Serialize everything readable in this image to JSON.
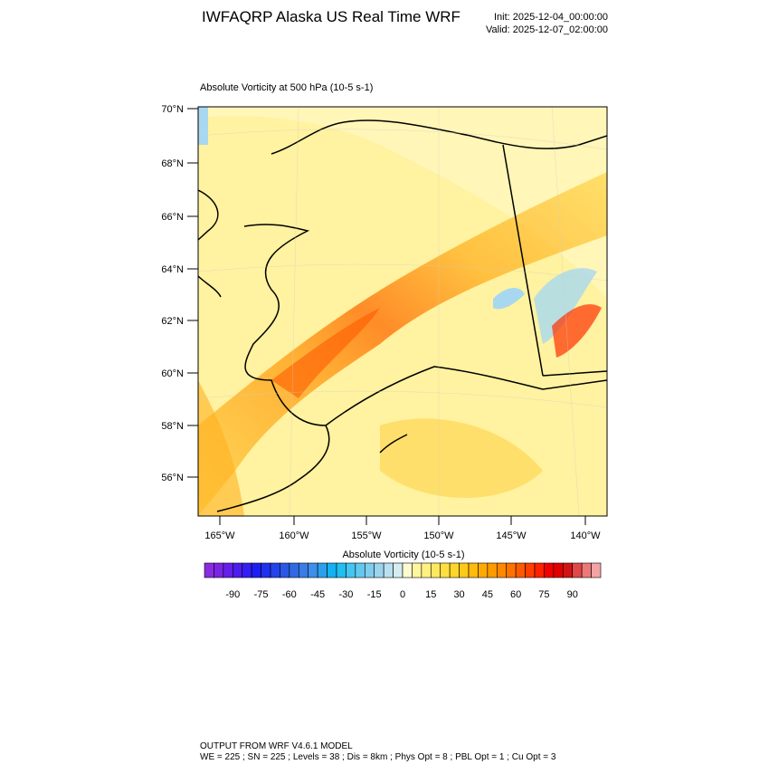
{
  "header": {
    "title": "IWFAQRP Alaska US Real Time WRF",
    "init": "Init: 2025-12-04_00:00:00",
    "valid": "Valid: 2025-12-07_02:00:00"
  },
  "map": {
    "subtitle": "Absolute Vorticity at 500 hPa   (10-5 s-1)",
    "lat_labels": [
      "70°N",
      "68°N",
      "66°N",
      "64°N",
      "62°N",
      "60°N",
      "58°N",
      "56°N"
    ],
    "lon_labels": [
      "165°W",
      "160°W",
      "155°W",
      "150°W",
      "145°W",
      "140°W"
    ]
  },
  "colorbar": {
    "title": "Absolute Vorticity  (10-5 s-1)",
    "labels": [
      -90,
      -75,
      -60,
      -45,
      -30,
      -15,
      0,
      15,
      30,
      45,
      60,
      75,
      90
    ],
    "colors": [
      "#8a2be2",
      "#7a24e6",
      "#6420ea",
      "#4c1eee",
      "#341ef2",
      "#1e1ef4",
      "#1e30f0",
      "#2444ea",
      "#2a58e4",
      "#306ae2",
      "#3a7ce6",
      "#3e8eea",
      "#2aa0ec",
      "#12b2f2",
      "#20bef2",
      "#44c6f0",
      "#62c8ee",
      "#80ccee",
      "#9cd4ee",
      "#b8e0f0",
      "#d4ecf2",
      "#fffbd0",
      "#fff6a0",
      "#fff080",
      "#ffe860",
      "#ffdf40",
      "#ffd52a",
      "#ffc81a",
      "#ffba0c",
      "#ffaa00",
      "#ff9a00",
      "#ff8800",
      "#ff7200",
      "#ff5a00",
      "#ff3e00",
      "#ff2000",
      "#f20000",
      "#e00000",
      "#d01414",
      "#e04848",
      "#ee7878",
      "#f4a4a4"
    ]
  },
  "footer": {
    "line1": "OUTPUT FROM WRF V4.6.1 MODEL",
    "line2": "WE = 225 ; SN = 225 ; Levels = 38 ; Dis = 8km ; Phys Opt = 8 ; PBL Opt = 1 ; Cu Opt = 3"
  }
}
